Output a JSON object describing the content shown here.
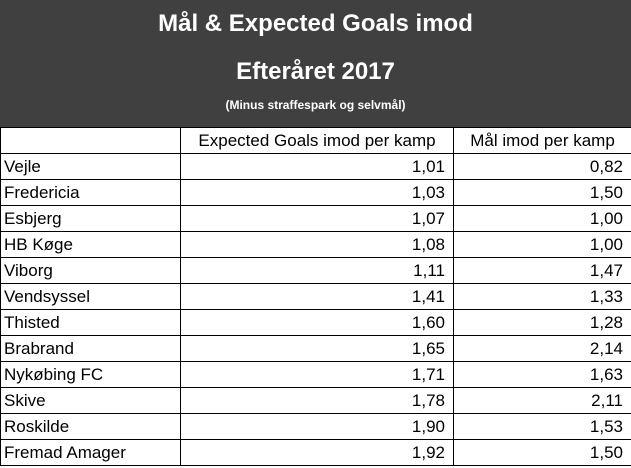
{
  "chart_data": {
    "type": "table",
    "title": "Mål & Expected Goals imod",
    "subtitle": "Efteråret 2017",
    "note": "(Minus straffespark og selvmål)",
    "columns": [
      "",
      "Expected Goals imod per kamp",
      "Mål imod per kamp"
    ],
    "rows": [
      {
        "team": "Vejle",
        "xga": "1,01",
        "ga": "0,82"
      },
      {
        "team": "Fredericia",
        "xga": "1,03",
        "ga": "1,50"
      },
      {
        "team": "Esbjerg",
        "xga": "1,07",
        "ga": "1,00"
      },
      {
        "team": "HB Køge",
        "xga": "1,08",
        "ga": "1,00"
      },
      {
        "team": "Viborg",
        "xga": "1,11",
        "ga": "1,47"
      },
      {
        "team": "Vendsyssel",
        "xga": "1,41",
        "ga": "1,33"
      },
      {
        "team": "Thisted",
        "xga": "1,60",
        "ga": "1,28"
      },
      {
        "team": "Brabrand",
        "xga": "1,65",
        "ga": "2,14"
      },
      {
        "team": "Nykøbing FC",
        "xga": "1,71",
        "ga": "1,63"
      },
      {
        "team": "Skive",
        "xga": "1,78",
        "ga": "2,11"
      },
      {
        "team": "Roskilde",
        "xga": "1,90",
        "ga": "1,53"
      },
      {
        "team": "Fremad Amager",
        "xga": "1,92",
        "ga": "1,50"
      }
    ]
  },
  "colors": {
    "header_bg": "#404040",
    "header_text": "#ffffff",
    "grid": "#000000"
  }
}
